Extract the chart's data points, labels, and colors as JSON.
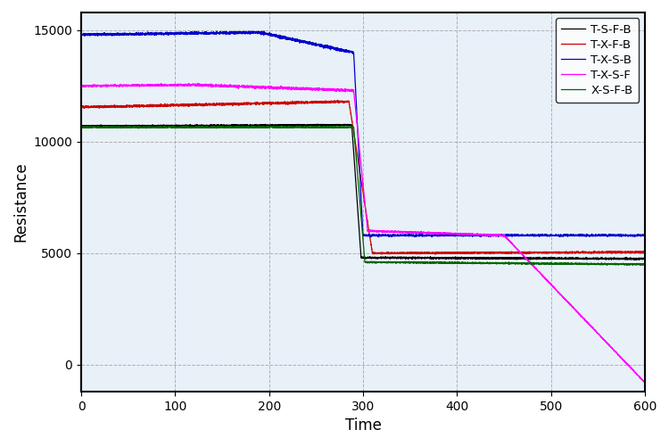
{
  "title": "",
  "xlabel": "Time",
  "ylabel": "Resistance",
  "xlim": [
    0,
    600
  ],
  "ylim": [
    -1200,
    15800
  ],
  "yticks": [
    0,
    5000,
    10000,
    15000
  ],
  "xticks": [
    0,
    100,
    200,
    300,
    400,
    500,
    600
  ],
  "grid": true,
  "plot_bg_color": "#e8f0f8",
  "background_color": "#ffffff",
  "series": [
    {
      "label": "T-S-F-B",
      "color": "#000000",
      "segments": [
        {
          "t0": 0,
          "t1": 288,
          "v0": 10700,
          "v1": 10750,
          "noise": 60
        },
        {
          "t0": 288,
          "t1": 298,
          "v0": 10750,
          "v1": 4800,
          "noise": 40
        },
        {
          "t0": 298,
          "t1": 600,
          "v0": 4800,
          "v1": 4750,
          "noise": 70
        }
      ]
    },
    {
      "label": "T-X-F-B",
      "color": "#cc0000",
      "segments": [
        {
          "t0": 0,
          "t1": 285,
          "v0": 11550,
          "v1": 11800,
          "noise": 90
        },
        {
          "t0": 285,
          "t1": 310,
          "v0": 11800,
          "v1": 5000,
          "noise": 60
        },
        {
          "t0": 310,
          "t1": 600,
          "v0": 5000,
          "v1": 5050,
          "noise": 70
        }
      ]
    },
    {
      "label": "T-X-S-B",
      "color": "#0000cc",
      "segments": [
        {
          "t0": 0,
          "t1": 190,
          "v0": 14800,
          "v1": 14900,
          "noise": 100
        },
        {
          "t0": 190,
          "t1": 290,
          "v0": 14900,
          "v1": 14000,
          "noise": 120
        },
        {
          "t0": 290,
          "t1": 300,
          "v0": 14000,
          "v1": 5800,
          "noise": 60
        },
        {
          "t0": 300,
          "t1": 600,
          "v0": 5800,
          "v1": 5800,
          "noise": 80
        }
      ]
    },
    {
      "label": "T-X-S-F",
      "color": "#ff00ff",
      "segments": [
        {
          "t0": 0,
          "t1": 120,
          "v0": 12500,
          "v1": 12550,
          "noise": 80
        },
        {
          "t0": 120,
          "t1": 290,
          "v0": 12550,
          "v1": 12300,
          "noise": 100
        },
        {
          "t0": 290,
          "t1": 305,
          "v0": 12300,
          "v1": 6000,
          "noise": 60
        },
        {
          "t0": 305,
          "t1": 450,
          "v0": 6000,
          "v1": 5800,
          "noise": 70
        },
        {
          "t0": 450,
          "t1": 600,
          "v0": 5800,
          "v1": -800,
          "noise": 50
        }
      ]
    },
    {
      "label": "X-S-F-B",
      "color": "#006600",
      "segments": [
        {
          "t0": 0,
          "t1": 290,
          "v0": 10650,
          "v1": 10650,
          "noise": 60
        },
        {
          "t0": 290,
          "t1": 302,
          "v0": 10650,
          "v1": 4600,
          "noise": 40
        },
        {
          "t0": 302,
          "t1": 600,
          "v0": 4600,
          "v1": 4500,
          "noise": 60
        }
      ]
    }
  ]
}
